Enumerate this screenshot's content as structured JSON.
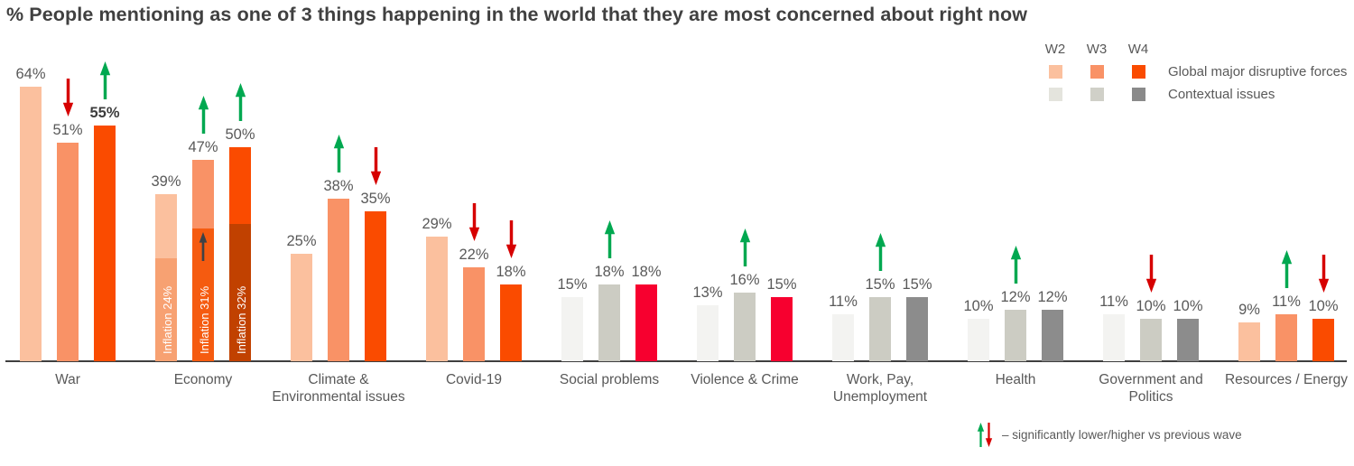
{
  "title": "% People mentioning as one of 3 things happening in the world that they are most concerned about right now",
  "legend": {
    "wave_headers": [
      "W2",
      "W3",
      "W4"
    ],
    "rows": [
      {
        "label": "Global major disruptive forces",
        "swatches": [
          "#FBC09E",
          "#F99266",
          "#FA4B00"
        ]
      },
      {
        "label": "Contextual issues",
        "swatches": [
          "#E4E4DD",
          "#D0D0C8",
          "#8A8A8A"
        ]
      }
    ]
  },
  "footnote": {
    "text": "– significantly lower/higher vs previous wave",
    "up_arrow_color": "#00A850",
    "down_arrow_color": "#D60000"
  },
  "chart_data": {
    "type": "bar",
    "value_suffix": "%",
    "waves": [
      "W2",
      "W3",
      "W4"
    ],
    "ylim": [
      0,
      70
    ],
    "grid": false,
    "legend_position": "top-right",
    "arrow_colors": {
      "up": "#00A850",
      "down": "#D60000",
      "inner": "#3E4247"
    },
    "arrow_meaning": "significantly lower/higher vs previous wave",
    "categories": [
      {
        "label": "War",
        "group": "Global major disruptive forces",
        "values": [
          64,
          51,
          55
        ],
        "bar_colors": [
          "#FBC09E",
          "#F99266",
          "#FA4B00"
        ],
        "arrows": [
          null,
          "down",
          "up"
        ],
        "bold_labels": [
          false,
          false,
          true
        ]
      },
      {
        "label": "Economy",
        "group": "Global major disruptive forces",
        "values": [
          39,
          47,
          50
        ],
        "bar_colors": [
          "#FBC09E",
          "#F99266",
          "#FA4B00"
        ],
        "arrows": [
          null,
          "up",
          "up"
        ],
        "inflation": [
          {
            "label": "Inflation 24%",
            "value": 24,
            "color": "#F7A172"
          },
          {
            "label": "Inflation 31%",
            "value": 31,
            "color": "#F55B10",
            "inner_arrow": "up"
          },
          {
            "label": "Inflation 32%",
            "value": 32,
            "color": "#C14100"
          }
        ]
      },
      {
        "label": "Climate & Environmental issues",
        "group": "Global major disruptive forces",
        "values": [
          25,
          38,
          35
        ],
        "bar_colors": [
          "#FBC09E",
          "#F99266",
          "#FA4B00"
        ],
        "arrows": [
          null,
          "up",
          "down"
        ]
      },
      {
        "label": "Covid-19",
        "group": "Global major disruptive forces",
        "values": [
          29,
          22,
          18
        ],
        "bar_colors": [
          "#FBC09E",
          "#F99266",
          "#FA4B00"
        ],
        "arrows": [
          null,
          "down",
          "down"
        ]
      },
      {
        "label": "Social problems",
        "group": "Contextual issues",
        "values": [
          15,
          18,
          18
        ],
        "bar_colors": [
          "#F3F3F1",
          "#CCCCC3",
          "#F7002F"
        ],
        "arrows": [
          null,
          "up",
          null
        ]
      },
      {
        "label": "Violence & Crime",
        "group": "Contextual issues",
        "values": [
          13,
          16,
          15
        ],
        "bar_colors": [
          "#F3F3F1",
          "#CCCCC3",
          "#F7002F"
        ],
        "arrows": [
          null,
          "up",
          null
        ]
      },
      {
        "label": "Work, Pay, Unemployment",
        "group": "Contextual issues",
        "values": [
          11,
          15,
          15
        ],
        "bar_colors": [
          "#F3F3F1",
          "#CCCCC3",
          "#8C8C8C"
        ],
        "arrows": [
          null,
          "up",
          null
        ]
      },
      {
        "label": "Health",
        "group": "Contextual issues",
        "values": [
          10,
          12,
          12
        ],
        "bar_colors": [
          "#F3F3F1",
          "#CCCCC3",
          "#8C8C8C"
        ],
        "arrows": [
          null,
          "up",
          null
        ]
      },
      {
        "label": "Government and Politics",
        "group": "Contextual issues",
        "values": [
          11,
          10,
          10
        ],
        "bar_colors": [
          "#F3F3F1",
          "#CCCCC3",
          "#8C8C8C"
        ],
        "arrows": [
          null,
          "down",
          null
        ]
      },
      {
        "label": "Resources / Energy",
        "group": "Global major disruptive forces",
        "values": [
          9,
          11,
          10
        ],
        "bar_colors": [
          "#FBC09E",
          "#F99266",
          "#FA4B00"
        ],
        "arrows": [
          null,
          "up",
          "down"
        ]
      }
    ]
  }
}
